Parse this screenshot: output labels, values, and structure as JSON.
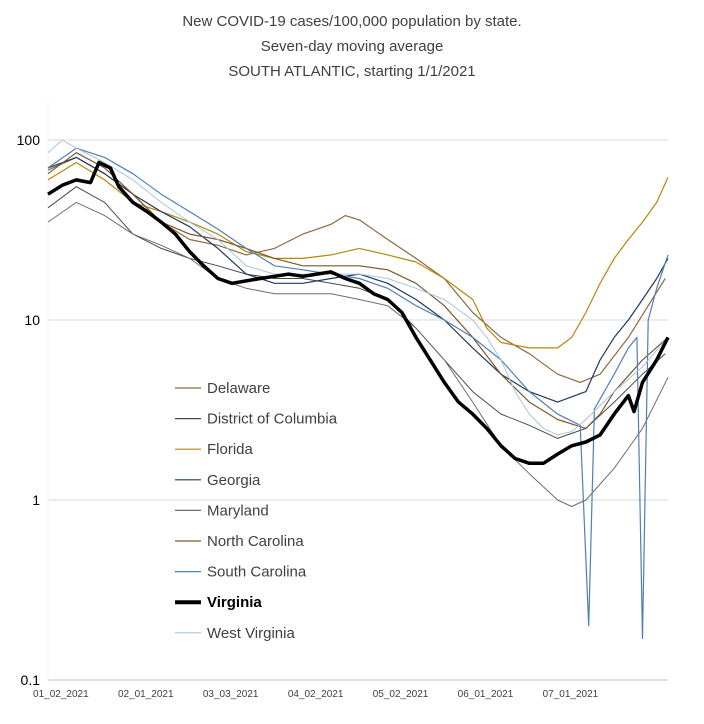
{
  "chart_data": {
    "type": "line",
    "title": [
      "New COVID-19 cases/100,000 population by state.",
      "Seven-day moving average",
      "SOUTH ATLANTIC, starting 1/1/2021"
    ],
    "y_scale": "log",
    "ylim": [
      0.1,
      200
    ],
    "y_ticks": [
      100,
      10,
      1,
      0.1
    ],
    "y_tick_labels": [
      "100",
      "10",
      "1",
      "0.1"
    ],
    "xlim_day_index": [
      0,
      219
    ],
    "x_ticks": [
      {
        "day": 1,
        "label": "01_02_2021"
      },
      {
        "day": 31,
        "label": "02_01_2021"
      },
      {
        "day": 61,
        "label": "03_03_2021"
      },
      {
        "day": 91,
        "label": "04_02_2021"
      },
      {
        "day": 121,
        "label": "05_02_2021"
      },
      {
        "day": 151,
        "label": "06_01_2021"
      },
      {
        "day": 181,
        "label": "07_01_2021"
      }
    ],
    "grid": "horizontal",
    "legend_position": "left-bottom",
    "series": [
      {
        "name": "Delaware",
        "color": "#8c6a3c",
        "width": 1.2,
        "points": [
          [
            0,
            68
          ],
          [
            10,
            80
          ],
          [
            20,
            65
          ],
          [
            30,
            50
          ],
          [
            40,
            35
          ],
          [
            50,
            28
          ],
          [
            60,
            26
          ],
          [
            70,
            23
          ],
          [
            80,
            25
          ],
          [
            90,
            30
          ],
          [
            100,
            34
          ],
          [
            105,
            38
          ],
          [
            110,
            36
          ],
          [
            120,
            28
          ],
          [
            130,
            22
          ],
          [
            140,
            17
          ],
          [
            150,
            11
          ],
          [
            160,
            8
          ],
          [
            170,
            6.5
          ],
          [
            180,
            5
          ],
          [
            188,
            4.5
          ],
          [
            195,
            5
          ],
          [
            205,
            8
          ],
          [
            212,
            12
          ],
          [
            218,
            17
          ]
        ]
      },
      {
        "name": "District of Columbia",
        "color": "#4a4a4a",
        "width": 1.0,
        "points": [
          [
            0,
            42
          ],
          [
            10,
            55
          ],
          [
            20,
            45
          ],
          [
            30,
            30
          ],
          [
            40,
            25
          ],
          [
            50,
            22
          ],
          [
            60,
            20
          ],
          [
            70,
            18
          ],
          [
            80,
            17
          ],
          [
            90,
            17
          ],
          [
            100,
            16
          ],
          [
            110,
            15
          ],
          [
            120,
            13
          ],
          [
            130,
            9
          ],
          [
            140,
            6
          ],
          [
            150,
            4
          ],
          [
            160,
            3
          ],
          [
            170,
            2.6
          ],
          [
            180,
            2.2
          ],
          [
            190,
            2.5
          ],
          [
            200,
            3.5
          ],
          [
            210,
            5
          ],
          [
            218,
            6.5
          ]
        ]
      },
      {
        "name": "Florida",
        "color": "#b8860b",
        "width": 1.2,
        "points": [
          [
            0,
            60
          ],
          [
            10,
            75
          ],
          [
            20,
            60
          ],
          [
            30,
            45
          ],
          [
            40,
            40
          ],
          [
            50,
            35
          ],
          [
            60,
            30
          ],
          [
            70,
            24
          ],
          [
            80,
            22
          ],
          [
            90,
            22
          ],
          [
            100,
            23
          ],
          [
            110,
            25
          ],
          [
            120,
            23
          ],
          [
            130,
            21
          ],
          [
            140,
            17
          ],
          [
            150,
            13
          ],
          [
            155,
            9
          ],
          [
            160,
            7.5
          ],
          [
            170,
            7
          ],
          [
            180,
            7
          ],
          [
            185,
            8
          ],
          [
            190,
            11
          ],
          [
            195,
            16
          ],
          [
            200,
            22
          ],
          [
            205,
            28
          ],
          [
            210,
            35
          ],
          [
            215,
            45
          ],
          [
            219,
            62
          ]
        ]
      },
      {
        "name": "Georgia",
        "color": "#1f3a5f",
        "width": 1.2,
        "points": [
          [
            0,
            70
          ],
          [
            10,
            80
          ],
          [
            20,
            65
          ],
          [
            30,
            50
          ],
          [
            40,
            40
          ],
          [
            50,
            33
          ],
          [
            60,
            25
          ],
          [
            70,
            18
          ],
          [
            80,
            16
          ],
          [
            90,
            16
          ],
          [
            100,
            17
          ],
          [
            110,
            18
          ],
          [
            120,
            16
          ],
          [
            130,
            13
          ],
          [
            140,
            10
          ],
          [
            150,
            7
          ],
          [
            160,
            5
          ],
          [
            170,
            4
          ],
          [
            180,
            3.5
          ],
          [
            190,
            4
          ],
          [
            195,
            6
          ],
          [
            200,
            8
          ],
          [
            205,
            10
          ],
          [
            210,
            13
          ],
          [
            215,
            17
          ],
          [
            219,
            22
          ]
        ]
      },
      {
        "name": "Maryland",
        "color": "#6e6e6e",
        "width": 1.0,
        "points": [
          [
            0,
            35
          ],
          [
            10,
            45
          ],
          [
            20,
            38
          ],
          [
            30,
            30
          ],
          [
            40,
            26
          ],
          [
            50,
            22
          ],
          [
            60,
            17
          ],
          [
            70,
            15
          ],
          [
            80,
            14
          ],
          [
            90,
            14
          ],
          [
            100,
            14
          ],
          [
            110,
            13
          ],
          [
            120,
            12
          ],
          [
            130,
            9
          ],
          [
            140,
            6
          ],
          [
            150,
            3.5
          ],
          [
            160,
            2
          ],
          [
            170,
            1.4
          ],
          [
            180,
            1.0
          ],
          [
            185,
            0.92
          ],
          [
            190,
            1.0
          ],
          [
            200,
            1.5
          ],
          [
            210,
            2.5
          ],
          [
            219,
            4.8
          ]
        ]
      },
      {
        "name": "North Carolina",
        "color": "#7a5a2f",
        "width": 1.2,
        "points": [
          [
            0,
            65
          ],
          [
            10,
            85
          ],
          [
            20,
            70
          ],
          [
            30,
            50
          ],
          [
            40,
            35
          ],
          [
            50,
            30
          ],
          [
            60,
            28
          ],
          [
            70,
            25
          ],
          [
            80,
            22
          ],
          [
            90,
            20
          ],
          [
            100,
            20
          ],
          [
            110,
            20
          ],
          [
            120,
            19
          ],
          [
            130,
            16
          ],
          [
            140,
            12
          ],
          [
            150,
            8
          ],
          [
            160,
            5
          ],
          [
            170,
            3.5
          ],
          [
            180,
            2.8
          ],
          [
            190,
            2.5
          ],
          [
            195,
            3
          ],
          [
            200,
            4
          ],
          [
            210,
            6
          ],
          [
            219,
            8
          ]
        ]
      },
      {
        "name": "South Carolina",
        "color": "#4f7fb5",
        "width": 1.2,
        "points": [
          [
            0,
            70
          ],
          [
            10,
            90
          ],
          [
            20,
            80
          ],
          [
            30,
            65
          ],
          [
            40,
            50
          ],
          [
            50,
            40
          ],
          [
            60,
            32
          ],
          [
            70,
            25
          ],
          [
            80,
            20
          ],
          [
            90,
            19
          ],
          [
            100,
            18
          ],
          [
            110,
            17
          ],
          [
            120,
            15
          ],
          [
            130,
            12
          ],
          [
            140,
            10
          ],
          [
            150,
            8
          ],
          [
            160,
            6
          ],
          [
            170,
            4
          ],
          [
            180,
            3
          ],
          [
            188,
            2.6
          ],
          [
            191,
            0.2
          ],
          [
            193,
            3.2
          ],
          [
            200,
            5
          ],
          [
            205,
            7
          ],
          [
            208,
            8
          ],
          [
            210,
            0.17
          ],
          [
            212,
            10
          ],
          [
            215,
            15
          ],
          [
            219,
            23
          ]
        ]
      },
      {
        "name": "Virginia",
        "color": "#000000",
        "width": 3.5,
        "points": [
          [
            0,
            50
          ],
          [
            5,
            56
          ],
          [
            10,
            60
          ],
          [
            15,
            58
          ],
          [
            18,
            75
          ],
          [
            22,
            70
          ],
          [
            25,
            55
          ],
          [
            30,
            45
          ],
          [
            35,
            40
          ],
          [
            40,
            35
          ],
          [
            45,
            30
          ],
          [
            50,
            24
          ],
          [
            55,
            20
          ],
          [
            60,
            17
          ],
          [
            65,
            16
          ],
          [
            70,
            16.5
          ],
          [
            75,
            17
          ],
          [
            80,
            17.5
          ],
          [
            85,
            18
          ],
          [
            90,
            17.5
          ],
          [
            95,
            18
          ],
          [
            100,
            18.5
          ],
          [
            105,
            17
          ],
          [
            110,
            16
          ],
          [
            115,
            14
          ],
          [
            120,
            13
          ],
          [
            125,
            11
          ],
          [
            130,
            8
          ],
          [
            135,
            6
          ],
          [
            140,
            4.5
          ],
          [
            145,
            3.5
          ],
          [
            150,
            3
          ],
          [
            155,
            2.5
          ],
          [
            160,
            2
          ],
          [
            165,
            1.7
          ],
          [
            170,
            1.6
          ],
          [
            175,
            1.6
          ],
          [
            180,
            1.8
          ],
          [
            185,
            2
          ],
          [
            190,
            2.1
          ],
          [
            195,
            2.3
          ],
          [
            200,
            3
          ],
          [
            205,
            3.8
          ],
          [
            207,
            3.1
          ],
          [
            210,
            4.5
          ],
          [
            215,
            6
          ],
          [
            219,
            8
          ]
        ]
      },
      {
        "name": "West Virginia",
        "color": "#a8c4e0",
        "width": 1.0,
        "points": [
          [
            0,
            85
          ],
          [
            5,
            100
          ],
          [
            10,
            90
          ],
          [
            20,
            75
          ],
          [
            30,
            60
          ],
          [
            40,
            45
          ],
          [
            50,
            35
          ],
          [
            60,
            28
          ],
          [
            70,
            20
          ],
          [
            80,
            18
          ],
          [
            90,
            18
          ],
          [
            100,
            18
          ],
          [
            110,
            18
          ],
          [
            120,
            17
          ],
          [
            130,
            15
          ],
          [
            140,
            13
          ],
          [
            150,
            10
          ],
          [
            155,
            8
          ],
          [
            160,
            6
          ],
          [
            165,
            4
          ],
          [
            170,
            3
          ],
          [
            175,
            2.5
          ],
          [
            180,
            2.3
          ],
          [
            185,
            2.4
          ],
          [
            190,
            2.8
          ],
          [
            200,
            4
          ],
          [
            210,
            5.5
          ],
          [
            219,
            8
          ]
        ]
      }
    ]
  }
}
